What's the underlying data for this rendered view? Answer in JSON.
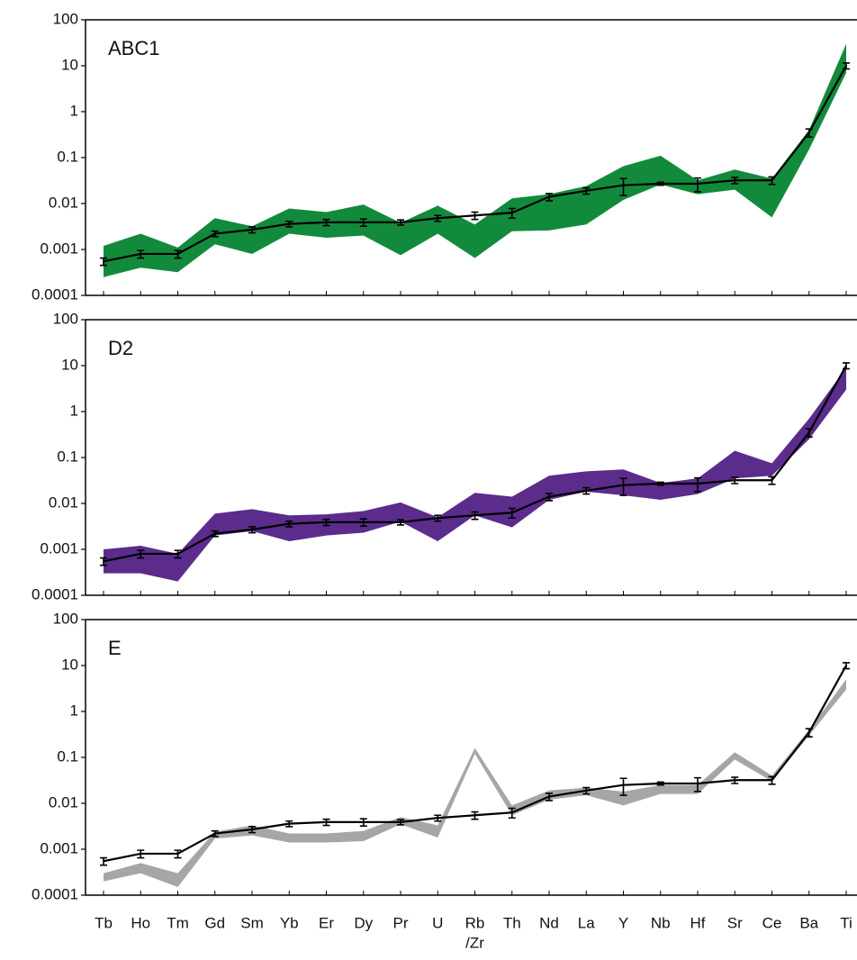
{
  "chart_data": [
    {
      "type": "line",
      "title": "ABC1",
      "log_y": true,
      "ylim": [
        0.0001,
        100
      ],
      "yticks": [
        0.0001,
        0.001,
        0.01,
        0.1,
        1,
        10,
        100
      ],
      "band": {
        "color": "#128a3c",
        "upper": [
          0.0012,
          0.0022,
          0.0011,
          0.0048,
          0.0032,
          0.0078,
          0.0065,
          0.0095,
          0.0038,
          0.009,
          0.0035,
          0.013,
          0.016,
          0.024,
          0.065,
          0.11,
          0.032,
          0.055,
          0.035,
          0.4,
          30
        ],
        "lower": [
          0.00025,
          0.0004,
          0.00032,
          0.0013,
          0.0008,
          0.0022,
          0.0018,
          0.002,
          0.00075,
          0.0022,
          0.00065,
          0.0025,
          0.0026,
          0.0035,
          0.012,
          0.026,
          0.016,
          0.02,
          0.005,
          0.15,
          7
        ]
      },
      "series": [
        {
          "color": "#000000",
          "values": [
            0.00055,
            0.0008,
            0.0008,
            0.0022,
            0.0027,
            0.0036,
            0.0039,
            0.0039,
            0.0039,
            0.0048,
            0.0055,
            0.0063,
            0.014,
            0.019,
            0.025,
            0.027,
            0.027,
            0.032,
            0.032,
            0.35,
            10
          ],
          "errors": [
            0.0001,
            0.00015,
            0.00015,
            0.0003,
            0.0004,
            0.0005,
            0.0006,
            0.0007,
            0.0005,
            0.0007,
            0.001,
            0.0015,
            0.0025,
            0.003,
            0.01,
            0.002,
            0.009,
            0.005,
            0.006,
            0.07,
            1.5
          ]
        }
      ]
    },
    {
      "type": "line",
      "title": "D2",
      "log_y": true,
      "ylim": [
        0.0001,
        100
      ],
      "yticks": [
        0.0001,
        0.001,
        0.01,
        0.1,
        1,
        10,
        100
      ],
      "band": {
        "color": "#5b2c8c",
        "upper": [
          0.001,
          0.0012,
          0.0008,
          0.006,
          0.0075,
          0.0055,
          0.0058,
          0.0068,
          0.0105,
          0.005,
          0.017,
          0.014,
          0.04,
          0.05,
          0.055,
          0.028,
          0.035,
          0.14,
          0.075,
          0.7,
          9
        ],
        "lower": [
          0.0003,
          0.0003,
          0.0002,
          0.002,
          0.0025,
          0.0015,
          0.002,
          0.0023,
          0.004,
          0.0015,
          0.0055,
          0.003,
          0.012,
          0.018,
          0.015,
          0.012,
          0.016,
          0.035,
          0.04,
          0.25,
          3
        ]
      },
      "series": [
        {
          "color": "#000000",
          "values": [
            0.00055,
            0.0008,
            0.0008,
            0.0022,
            0.0027,
            0.0036,
            0.0039,
            0.0039,
            0.0039,
            0.0048,
            0.0055,
            0.0063,
            0.014,
            0.019,
            0.025,
            0.027,
            0.027,
            0.032,
            0.032,
            0.35,
            10
          ],
          "errors": [
            0.0001,
            0.00015,
            0.00015,
            0.0003,
            0.0004,
            0.0005,
            0.0006,
            0.0007,
            0.0005,
            0.0007,
            0.001,
            0.0015,
            0.0025,
            0.003,
            0.01,
            0.002,
            0.009,
            0.005,
            0.006,
            0.07,
            1.5
          ]
        }
      ]
    },
    {
      "type": "line",
      "title": "E",
      "log_y": true,
      "xlabel": "/Zr",
      "categories": [
        "Tb",
        "Ho",
        "Tm",
        "Gd",
        "Sm",
        "Yb",
        "Er",
        "Dy",
        "Pr",
        "U",
        "Rb",
        "Th",
        "Nd",
        "La",
        "Y",
        "Nb",
        "Hf",
        "Sr",
        "Ce",
        "Ba",
        "Ti"
      ],
      "ylim": [
        0.0001,
        100
      ],
      "yticks": [
        0.0001,
        0.001,
        0.01,
        0.1,
        1,
        10,
        100
      ],
      "band": {
        "color": "#a6a6a6",
        "upper": [
          0.0003,
          0.0005,
          0.0003,
          0.0024,
          0.0033,
          0.0022,
          0.0022,
          0.0025,
          0.005,
          0.0033,
          0.16,
          0.009,
          0.019,
          0.022,
          0.018,
          0.025,
          0.025,
          0.13,
          0.04,
          0.4,
          5
        ],
        "lower": [
          0.0002,
          0.0003,
          0.00015,
          0.0017,
          0.002,
          0.0014,
          0.0014,
          0.0015,
          0.0035,
          0.0018,
          0.12,
          0.0055,
          0.012,
          0.015,
          0.009,
          0.016,
          0.016,
          0.09,
          0.03,
          0.3,
          3
        ]
      },
      "series": [
        {
          "color": "#000000",
          "values": [
            0.00055,
            0.0008,
            0.0008,
            0.0022,
            0.0027,
            0.0036,
            0.0039,
            0.0039,
            0.0039,
            0.0048,
            0.0055,
            0.0063,
            0.014,
            0.019,
            0.025,
            0.027,
            0.027,
            0.032,
            0.032,
            0.35,
            10
          ],
          "errors": [
            0.0001,
            0.00015,
            0.00015,
            0.0003,
            0.0004,
            0.0005,
            0.0006,
            0.0007,
            0.0005,
            0.0007,
            0.001,
            0.0015,
            0.0025,
            0.003,
            0.01,
            0.002,
            0.009,
            0.005,
            0.006,
            0.07,
            1.5
          ]
        }
      ]
    }
  ]
}
